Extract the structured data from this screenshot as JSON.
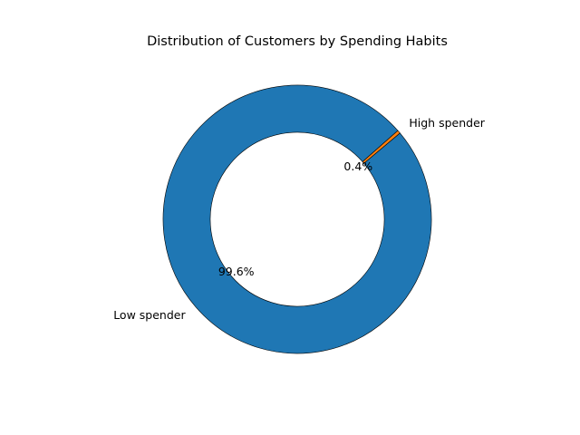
{
  "chart_data": {
    "type": "pie",
    "variant": "donut",
    "title": "Distribution of Customers by Spending Habits",
    "categories": [
      "High spender",
      "Low spender"
    ],
    "values": [
      0.4,
      99.6
    ],
    "value_labels": [
      "0.4%",
      "99.6%"
    ],
    "colors": [
      "#ff7f0e",
      "#1f77b4"
    ],
    "edge_color": "#000000",
    "legend": "none"
  }
}
